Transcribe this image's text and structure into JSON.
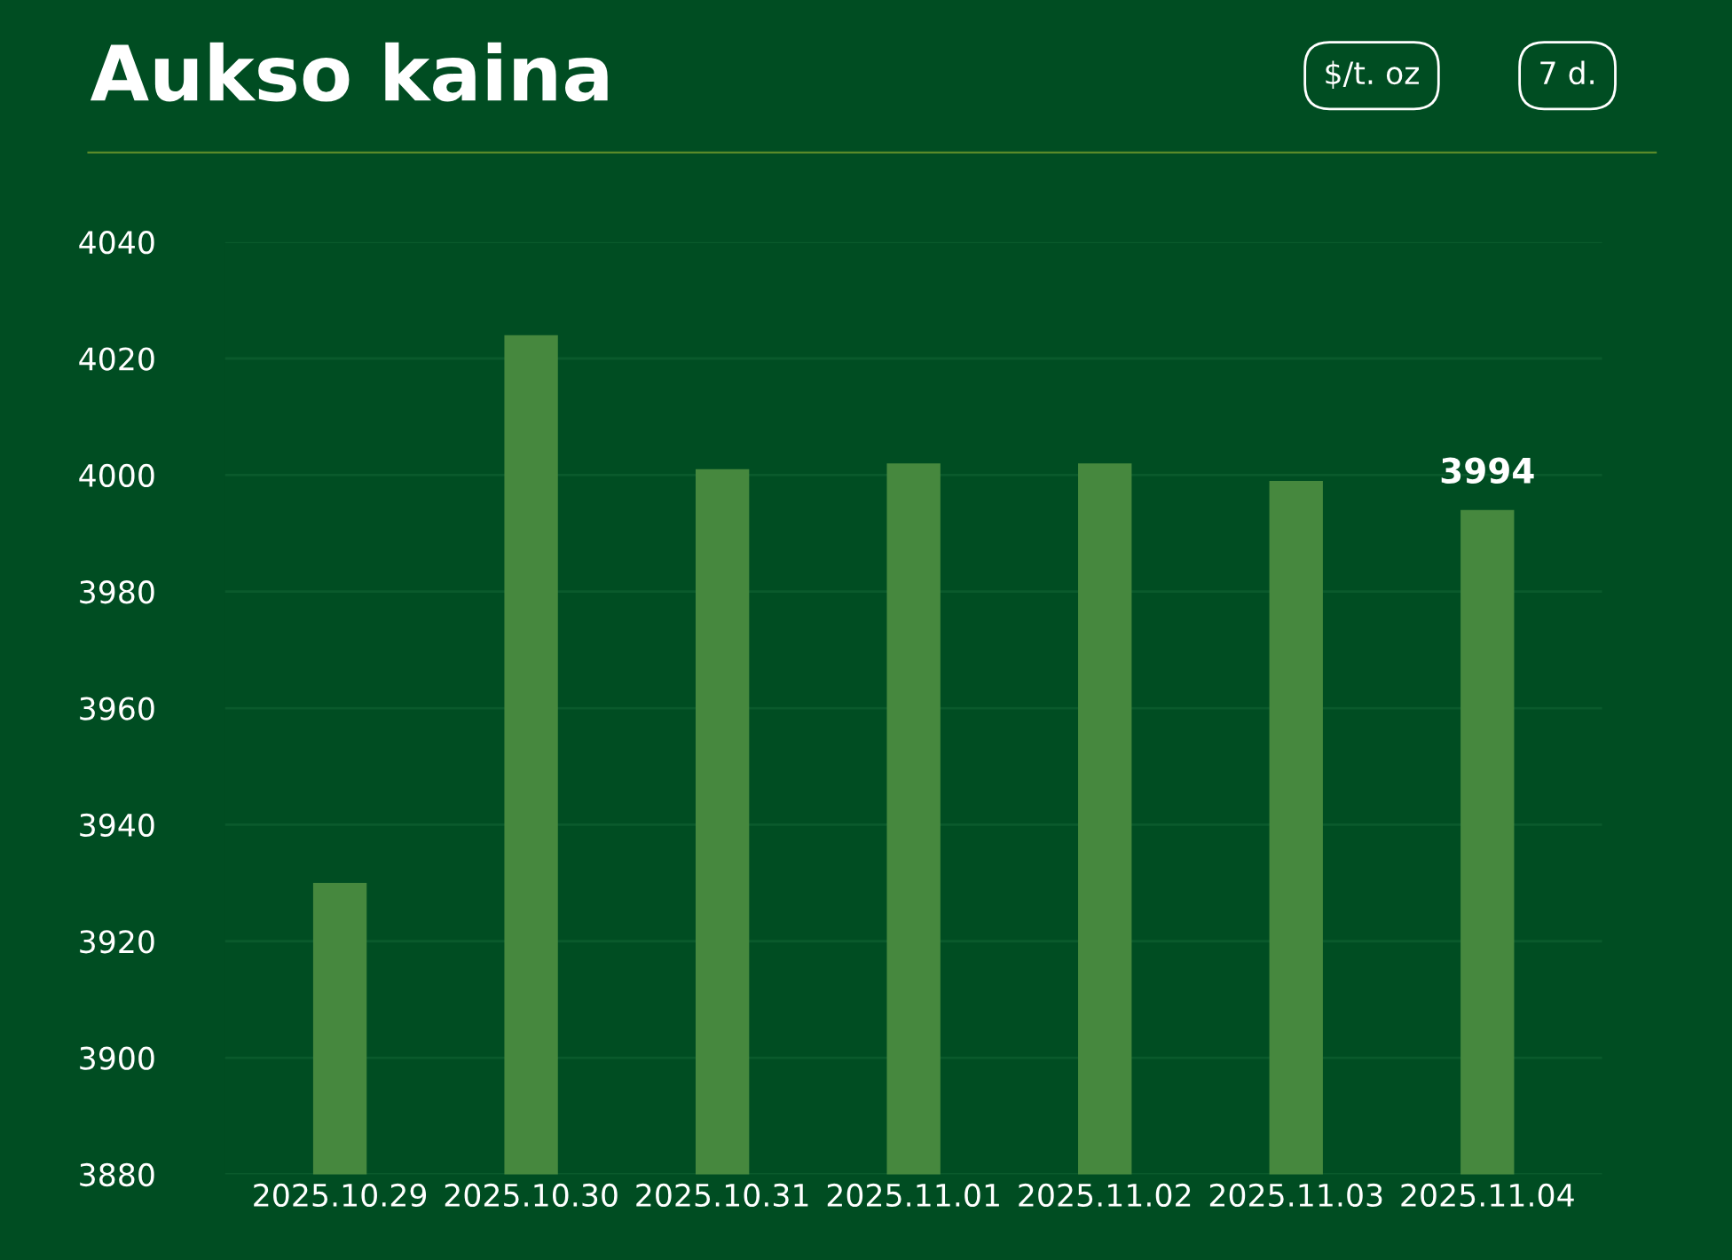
{
  "chart_data": {
    "type": "bar",
    "title": "Aukso kaina",
    "annotations": [
      "$/t. oz",
      "7 d."
    ],
    "categories": [
      "2025.10.29",
      "2025.10.30",
      "2025.10.31",
      "2025.11.01",
      "2025.11.02",
      "2025.11.03",
      "2025.11.04"
    ],
    "values": [
      3930,
      4024,
      4001,
      4002,
      4002,
      3999,
      3994
    ],
    "value_labels": [
      null,
      null,
      null,
      null,
      null,
      null,
      "3994"
    ],
    "color": "#46883e",
    "ylim": [
      3880,
      4040
    ],
    "yticks": [
      3880,
      3900,
      3920,
      3940,
      3960,
      3980,
      4000,
      4020,
      4040
    ],
    "grid": "y"
  }
}
